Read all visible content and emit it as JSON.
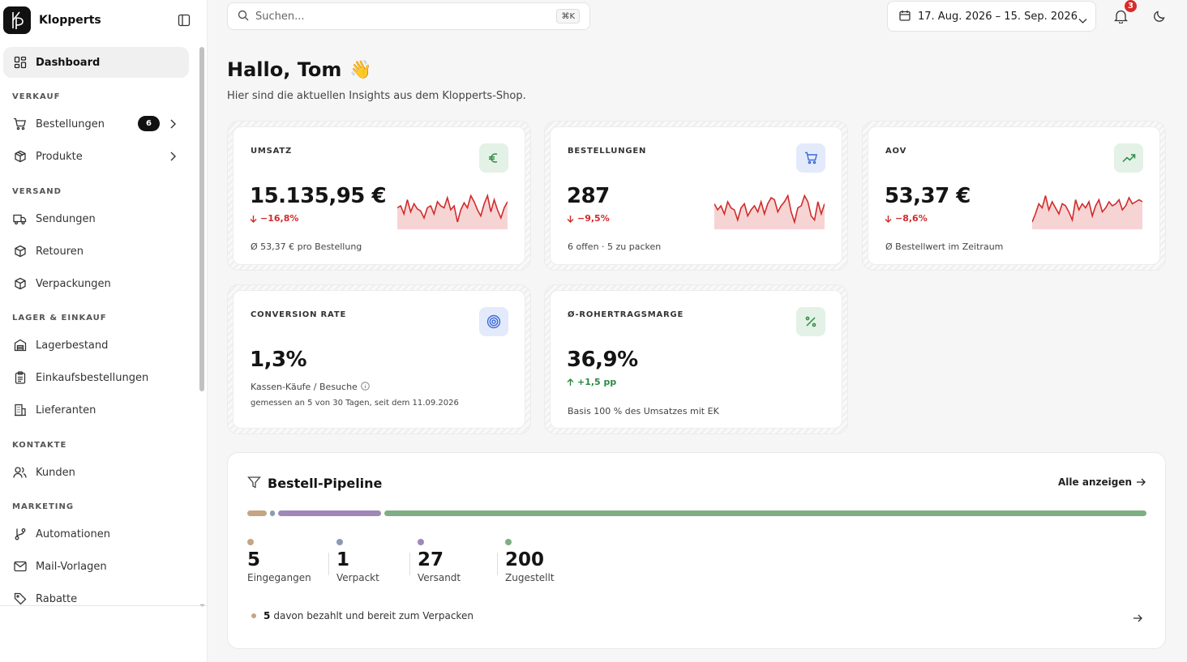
{
  "brand": {
    "name": "Klopperts"
  },
  "nav": {
    "dashboard": "Dashboard",
    "sections": {
      "sales": "VERKAUF",
      "shipping": "VERSAND",
      "stock": "LAGER & EINKAUF",
      "contacts": "KONTAKTE",
      "marketing": "MARKETING"
    },
    "items": {
      "orders": "Bestellungen",
      "orders_count": "6",
      "products": "Produkte",
      "shipments": "Sendungen",
      "returns": "Retouren",
      "packaging": "Verpackungen",
      "inventory": "Lagerbestand",
      "purchase_orders": "Einkaufsbestellungen",
      "suppliers": "Lieferanten",
      "customers": "Kunden",
      "automations": "Automationen",
      "mail_templates": "Mail-Vorlagen",
      "discounts": "Rabatte"
    }
  },
  "topbar": {
    "search_placeholder": "Suchen...",
    "shortcut": "⌘K",
    "date_range": "17. Aug. 2026 – 15. Sep. 2026",
    "notifications_count": "3"
  },
  "header": {
    "greeting": "Hallo, Tom",
    "wave": "👋",
    "subtitle": "Hier sind die aktuellen Insights aus dem Klopperts-Shop."
  },
  "kpis": {
    "revenue": {
      "title": "UMSATZ",
      "value": "15.135,95 €",
      "delta": "−16,8%",
      "note": "Ø 53,37 € pro Bestellung",
      "trend": [
        18,
        20,
        12,
        26,
        14,
        22,
        17,
        15,
        8,
        18,
        20,
        12,
        24,
        20,
        18,
        28,
        16,
        20,
        4,
        16,
        23,
        18,
        30,
        24,
        16,
        10,
        22,
        30,
        14,
        26,
        16,
        8,
        18,
        24
      ]
    },
    "orders": {
      "title": "BESTELLUNGEN",
      "value": "287",
      "delta": "−9,5%",
      "note": "6 offen · 5 zu packen",
      "trend": [
        22,
        16,
        20,
        12,
        24,
        18,
        16,
        6,
        18,
        22,
        10,
        16,
        20,
        14,
        24,
        12,
        22,
        28,
        26,
        14,
        20,
        24,
        30,
        14,
        4,
        18,
        20,
        30,
        24,
        10,
        6,
        24,
        12,
        22
      ]
    },
    "aov": {
      "title": "AOV",
      "value": "53,37 €",
      "delta": "−8,6%",
      "note": "Ø Bestellwert im Zeitraum",
      "trend": [
        4,
        12,
        22,
        18,
        30,
        16,
        24,
        18,
        12,
        22,
        20,
        14,
        6,
        26,
        16,
        22,
        18,
        24,
        10,
        20,
        26,
        14,
        18,
        24,
        20,
        22,
        26,
        16,
        20,
        28,
        22,
        24,
        26,
        24
      ]
    },
    "conversion": {
      "title": "CONVERSION RATE",
      "value": "1,3%",
      "note": "Kassen-Käufe / Besuche",
      "note2": "gemessen an 5 von 30 Tagen, seit dem 11.09.2026"
    },
    "margin": {
      "title": "Ø-ROHERTRAGSMARGE",
      "value": "36,9%",
      "delta": "+1,5 pp",
      "note": "Basis 100 % des Umsatzes mit EK"
    }
  },
  "pipeline": {
    "title": "Bestell-Pipeline",
    "show_all": "Alle anzeigen",
    "stages": [
      {
        "count": "5",
        "label": "Eingegangen",
        "color": "#c4a584"
      },
      {
        "count": "1",
        "label": "Verpackt",
        "color": "#8b9bb3"
      },
      {
        "count": "27",
        "label": "Versandt",
        "color": "#9f88b8"
      },
      {
        "count": "200",
        "label": "Zugestellt",
        "color": "#7fae84"
      }
    ],
    "footer_count": "5",
    "footer_text": "davon bezahlt und bereit zum Verpacken"
  },
  "colors": {
    "negative": "#d12b2b",
    "positive": "#2a8a43",
    "icon_green_bg": "#e3f1e6",
    "icon_blue_bg": "#e3eafc"
  }
}
